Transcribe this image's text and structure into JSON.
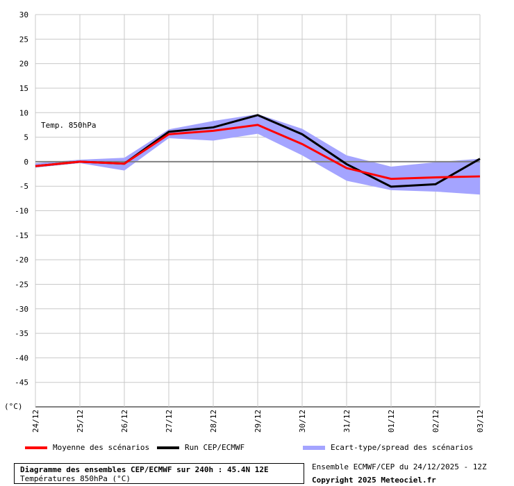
{
  "chart_data": {
    "type": "line",
    "annotation": "Temp. 850hPa",
    "unit_label": "(°C)",
    "categories": [
      "24/12",
      "25/12",
      "26/12",
      "27/12",
      "28/12",
      "29/12",
      "30/12",
      "31/12",
      "01/12",
      "02/12",
      "03/12"
    ],
    "ylim": [
      -50,
      30
    ],
    "yticks": [
      30,
      25,
      20,
      15,
      10,
      5,
      0,
      -5,
      -10,
      -15,
      -20,
      -25,
      -30,
      -35,
      -40,
      -45
    ],
    "grid": true,
    "series": [
      {
        "name": "Moyenne des scénarios",
        "color": "#ff0000",
        "style": "line",
        "values": [
          -0.9,
          0.0,
          -0.4,
          5.6,
          6.3,
          7.5,
          3.6,
          -1.3,
          -3.5,
          -3.2,
          -3.0
        ]
      },
      {
        "name": "Run CEP/ECMWF",
        "color": "#000000",
        "style": "line",
        "values": [
          -0.9,
          0.0,
          -0.4,
          6.1,
          7.0,
          9.5,
          5.6,
          -0.5,
          -5.1,
          -4.6,
          0.6
        ]
      },
      {
        "name": "Ecart-type/spread des scénarios",
        "color": "#a4a4ff",
        "style": "band",
        "lower": [
          -1.2,
          -0.3,
          -1.8,
          4.8,
          4.3,
          5.7,
          1.3,
          -3.9,
          -5.8,
          -6.1,
          -6.7
        ],
        "upper": [
          -0.3,
          0.4,
          0.8,
          6.6,
          8.3,
          9.7,
          6.7,
          1.3,
          -1.0,
          -0.1,
          0.6
        ]
      }
    ]
  },
  "legend": {
    "mean": "Moyenne des scénarios",
    "run": "Run CEP/ECMWF",
    "spread": "Ecart-type/spread des scénarios"
  },
  "footer": {
    "title": "Diagramme des ensembles CEP/ECMWF sur 240h : 45.4N 12E",
    "subtitle": "Températures 850hPa (°C)",
    "run_info": "Ensemble ECMWF/CEP du 24/12/2025 - 12Z",
    "copyright": "Copyright 2025 Meteociel.fr"
  }
}
